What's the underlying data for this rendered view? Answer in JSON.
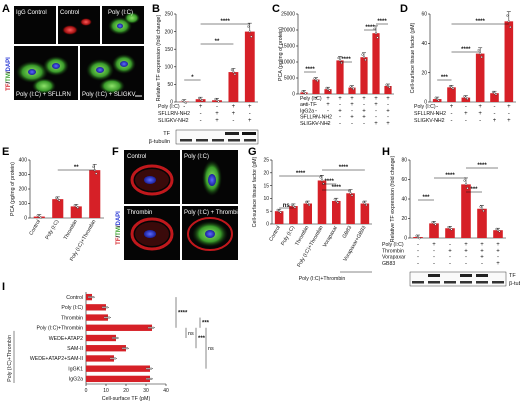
{
  "colors": {
    "bar": "#d62027",
    "axis": "#111111",
    "micro_bg": "#050505"
  },
  "panel_letters": {
    "A": "A",
    "B": "B",
    "C": "C",
    "D": "D",
    "E": "E",
    "F": "F",
    "G": "G",
    "H": "H",
    "I": "I"
  },
  "panel_a": {
    "tiles": [
      "IgG Control",
      "Control",
      "Poly (I:C)",
      "Poly (I:C) + SFLLRN",
      "Poly (I:C) + SLIGKV"
    ],
    "stain": {
      "tf": "TF",
      "sep1": "/",
      "tm": "TM",
      "sep2": "/",
      "dapi": "DAPI"
    }
  },
  "panel_f": {
    "tiles": [
      "Control",
      "Poly (I:C)",
      "Thrombin",
      "Poly (I:C) + Thrombin"
    ],
    "stain": {
      "tf": "TF",
      "sep1": "/",
      "tm": "TM",
      "sep2": "/",
      "dapi": "DAPI"
    }
  },
  "blots": {
    "tf": "TF",
    "tubulin": "β-tubulin"
  },
  "significance": {
    "s1": "*",
    "s2": "**",
    "s3": "***",
    "s4": "****",
    "ns": "ns"
  },
  "chart_data": [
    {
      "panel": "B",
      "type": "bar",
      "ylabel": "Relative TF expression (fold change)",
      "ylim": [
        0,
        250
      ],
      "yticks": [
        "0",
        "50",
        "100",
        "150",
        "200",
        "250"
      ],
      "values": [
        1,
        8,
        5,
        85,
        200
      ],
      "conditions": {
        "rows": [
          "Poly (I:C)",
          "SFLLRN-NH2",
          "SLIGKV-NH2"
        ],
        "marks": [
          [
            "-",
            "+",
            "-",
            "+",
            "+"
          ],
          [
            "-",
            "-",
            "+",
            "+",
            "-"
          ],
          [
            "-",
            "-",
            "+",
            "-",
            "+"
          ]
        ]
      }
    },
    {
      "panel": "C",
      "type": "bar",
      "ylabel": "PCA (pg/mg of protein)",
      "ylim": [
        0,
        25000
      ],
      "yticks": [
        "0",
        "5000",
        "10000",
        "15000",
        "20000",
        "25000"
      ],
      "values": [
        500,
        4500,
        1500,
        10500,
        2000,
        11500,
        19000,
        2500
      ],
      "conditions": {
        "rows": [
          "Poly (I:C)",
          "anti-TF",
          "IgG2a",
          "SFLLRN-NH2",
          "SLIGKV-NH2"
        ],
        "marks": [
          [
            "-",
            "+",
            "+",
            "+",
            "+",
            "+",
            "+",
            "+"
          ],
          [
            "-",
            "-",
            "+",
            "-",
            "+",
            "-",
            "+",
            "-"
          ],
          [
            "-",
            "-",
            "-",
            "+",
            "-",
            "+",
            "-",
            "+"
          ],
          [
            "-",
            "-",
            "-",
            "-",
            "+",
            "+",
            "-",
            "-"
          ],
          [
            "-",
            "-",
            "-",
            "-",
            "-",
            "-",
            "+",
            "+"
          ]
        ]
      }
    },
    {
      "panel": "D",
      "type": "bar",
      "ylabel": "Cell-surface tissue factor (pM)",
      "ylim": [
        0,
        60
      ],
      "yticks": [
        "0",
        "20",
        "40",
        "60"
      ],
      "values": [
        2,
        10,
        3,
        33,
        6,
        55
      ],
      "conditions": {
        "rows": [
          "Poly (I:C)",
          "SFLLRN-NH2",
          "SLIGKV-NH2"
        ],
        "marks": [
          [
            "-",
            "+",
            "-",
            "+",
            "-",
            "+"
          ],
          [
            "-",
            "-",
            "+",
            "+",
            "-",
            "-"
          ],
          [
            "-",
            "-",
            "-",
            "-",
            "+",
            "+"
          ]
        ]
      }
    },
    {
      "panel": "E",
      "type": "bar",
      "ylabel": "PCA (pg/mg of protein)",
      "ylim": [
        0,
        400
      ],
      "yticks": [
        "0",
        "100",
        "200",
        "300",
        "400"
      ],
      "categories": [
        "Control",
        "Poly (I:C)",
        "Thrombin",
        "Poly (I:C)+Thrombin"
      ],
      "values": [
        10,
        130,
        80,
        330
      ]
    },
    {
      "panel": "G",
      "type": "bar",
      "ylabel": "Cell-surface tissue factor (pM)",
      "ylim": [
        0,
        25
      ],
      "yticks": [
        "0",
        "5",
        "10",
        "15",
        "20",
        "25"
      ],
      "categories": [
        "Control",
        "Poly (I:C)",
        "Thrombin",
        "Poly (I:C)+Thrombin",
        "Vorapaxar",
        "GB83",
        "Vorapaxar+GB83"
      ],
      "values": [
        5,
        7,
        8,
        17,
        9,
        12,
        8
      ],
      "group_label": "Poly (I:C)+Thrombin"
    },
    {
      "panel": "H",
      "type": "bar",
      "ylabel": "Relative TF expression (fold change)",
      "ylim": [
        0,
        80
      ],
      "yticks": [
        "0",
        "20",
        "40",
        "60",
        "80"
      ],
      "values": [
        1,
        15,
        10,
        55,
        30,
        8
      ],
      "conditions": {
        "rows": [
          "Poly (I:C)",
          "Thrombin",
          "Vorapaxar",
          "GB83"
        ],
        "marks": [
          [
            "-",
            "+",
            "-",
            "+",
            "+",
            "+"
          ],
          [
            "-",
            "-",
            "+",
            "+",
            "+",
            "+"
          ],
          [
            "-",
            "-",
            "-",
            "-",
            "+",
            "-"
          ],
          [
            "-",
            "-",
            "-",
            "-",
            "-",
            "+"
          ]
        ]
      }
    },
    {
      "panel": "I",
      "type": "bar",
      "orientation": "horizontal",
      "xlabel": "Cell-surface TF (pM)",
      "xlim": [
        0,
        40
      ],
      "xticks": [
        "0",
        "10",
        "20",
        "30",
        "40"
      ],
      "categories": [
        "Control",
        "Poly (I:C)",
        "Thrombin",
        "Poly (I:C)+Thrombin",
        "WEDE+ATAP2",
        "SAM-II",
        "WEDE+ATAP2+SAM-II",
        "IgGK1",
        "IgG2a"
      ],
      "values": [
        3,
        10,
        11,
        33,
        15,
        20,
        14,
        32,
        32
      ],
      "group_label": "Poly (I:C)+Thrombin"
    }
  ]
}
